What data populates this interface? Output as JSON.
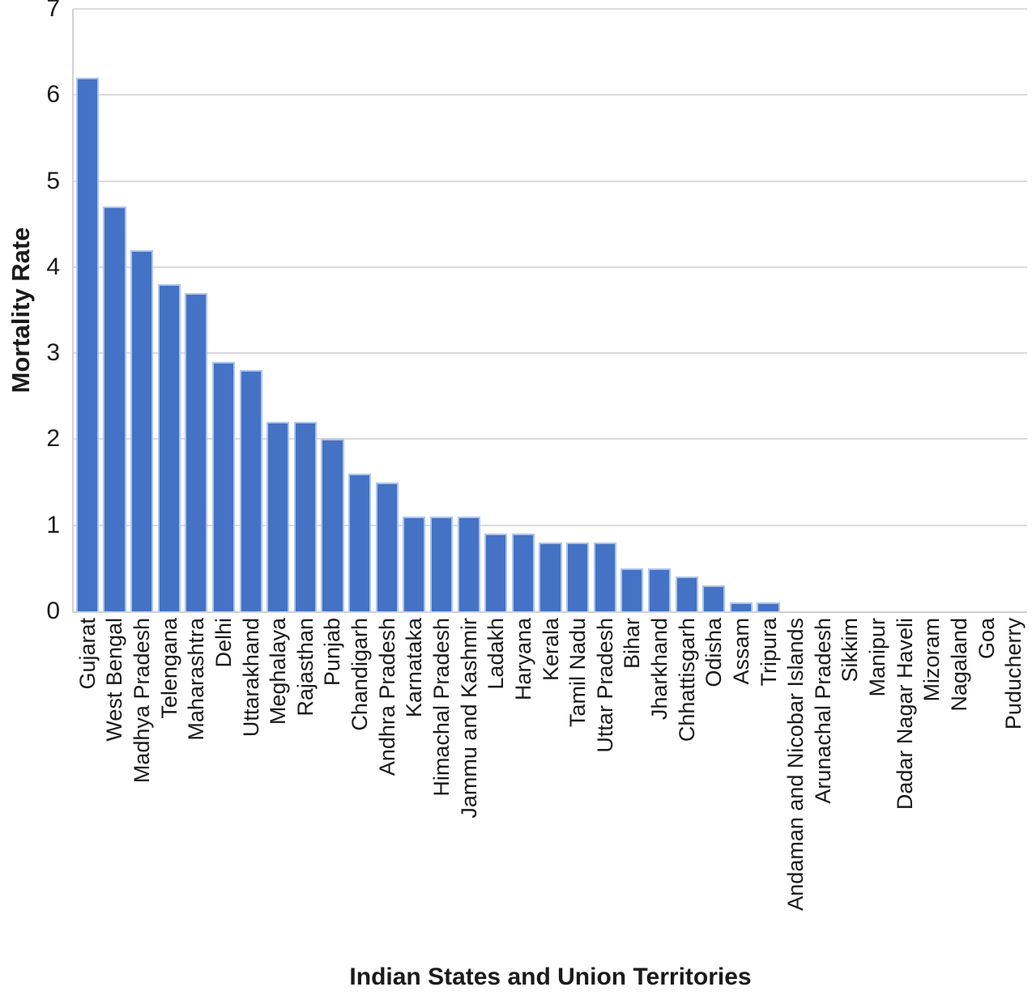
{
  "chart_data": {
    "type": "bar",
    "title": "",
    "xlabel": "Indian States and Union Territories",
    "ylabel": "Mortality Rate",
    "ylim": [
      0,
      7
    ],
    "yticks": [
      0,
      1,
      2,
      3,
      4,
      5,
      6,
      7
    ],
    "grid": "horizontal",
    "legend_position": "none",
    "bar_color": "#4472C4",
    "bar_border_color": "#AEC4E8",
    "gridline_color": "#DBDBDB",
    "axis_line_color": "#D2D2D2",
    "text_color": "#1A1A1A",
    "categories": [
      "Gujarat",
      "West Bengal",
      "Madhya Pradesh",
      "Telengana",
      "Maharashtra",
      "Delhi",
      "Uttarakhand",
      "Meghalaya",
      "Rajasthan",
      "Punjab",
      "Chandigarh",
      "Andhra Pradesh",
      "Karnataka",
      "Himachal Pradesh",
      "Jammu and Kashmir",
      "Ladakh",
      "Haryana",
      "Kerala",
      "Tamil Nadu",
      "Uttar Pradesh",
      "Bihar",
      "Jharkhand",
      "Chhattisgarh",
      "Odisha",
      "Assam",
      "Tripura",
      "Andaman and Nicobar Islands",
      "Arunachal Pradesh",
      "Sikkim",
      "Manipur",
      "Dadar Nagar Haveli",
      "Mizoram",
      "Nagaland",
      "Goa",
      "Puducherry"
    ],
    "values": [
      6.2,
      4.7,
      4.2,
      3.8,
      3.7,
      2.9,
      2.8,
      2.2,
      2.2,
      2.0,
      1.6,
      1.5,
      1.1,
      1.1,
      1.1,
      0.9,
      0.9,
      0.8,
      0.8,
      0.8,
      0.5,
      0.5,
      0.4,
      0.3,
      0.1,
      0.1,
      0,
      0,
      0,
      0,
      0,
      0,
      0,
      0,
      0
    ]
  }
}
